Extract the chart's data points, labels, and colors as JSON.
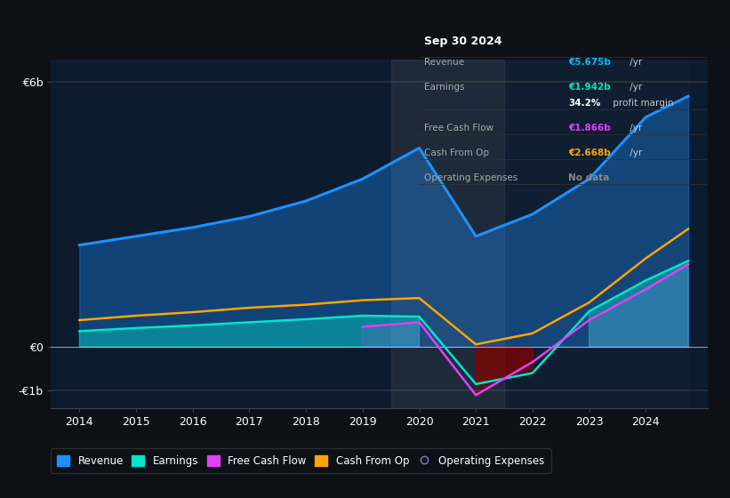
{
  "bg_color": "#0d1117",
  "plot_bg_color": "#0d1b2e",
  "years": [
    2014,
    2015,
    2016,
    2017,
    2018,
    2019,
    2020,
    2021,
    2022,
    2023,
    2024,
    2024.75
  ],
  "revenue": [
    2.3,
    2.5,
    2.7,
    2.95,
    3.3,
    3.8,
    4.5,
    2.5,
    3.0,
    3.8,
    5.2,
    5.675
  ],
  "earnings": [
    0.35,
    0.42,
    0.48,
    0.55,
    0.62,
    0.7,
    0.68,
    -0.85,
    -0.6,
    0.8,
    1.5,
    1.942
  ],
  "free_cash_flow": [
    null,
    null,
    null,
    null,
    null,
    0.45,
    0.55,
    -1.1,
    -0.35,
    0.6,
    1.3,
    1.866
  ],
  "cash_from_op": [
    0.6,
    0.7,
    0.78,
    0.88,
    0.95,
    1.05,
    1.1,
    0.05,
    0.3,
    1.0,
    2.0,
    2.668
  ],
  "revenue_color": "#1e90ff",
  "earnings_color": "#00e5cc",
  "fcf_color": "#e040fb",
  "cash_op_color": "#ffa500",
  "op_exp_color": "#9370db",
  "ylim": [
    -1.4,
    6.5
  ],
  "yticks": [
    -1.0,
    0.0,
    6.0
  ],
  "ytick_labels": [
    "-€1b",
    "€0",
    "€6b"
  ],
  "legend_items": [
    {
      "label": "Revenue",
      "color": "#1e90ff"
    },
    {
      "label": "Earnings",
      "color": "#00e5cc"
    },
    {
      "label": "Free Cash Flow",
      "color": "#e040fb"
    },
    {
      "label": "Cash From Op",
      "color": "#ffa500"
    },
    {
      "label": "Operating Expenses",
      "color": "#9370db"
    }
  ]
}
